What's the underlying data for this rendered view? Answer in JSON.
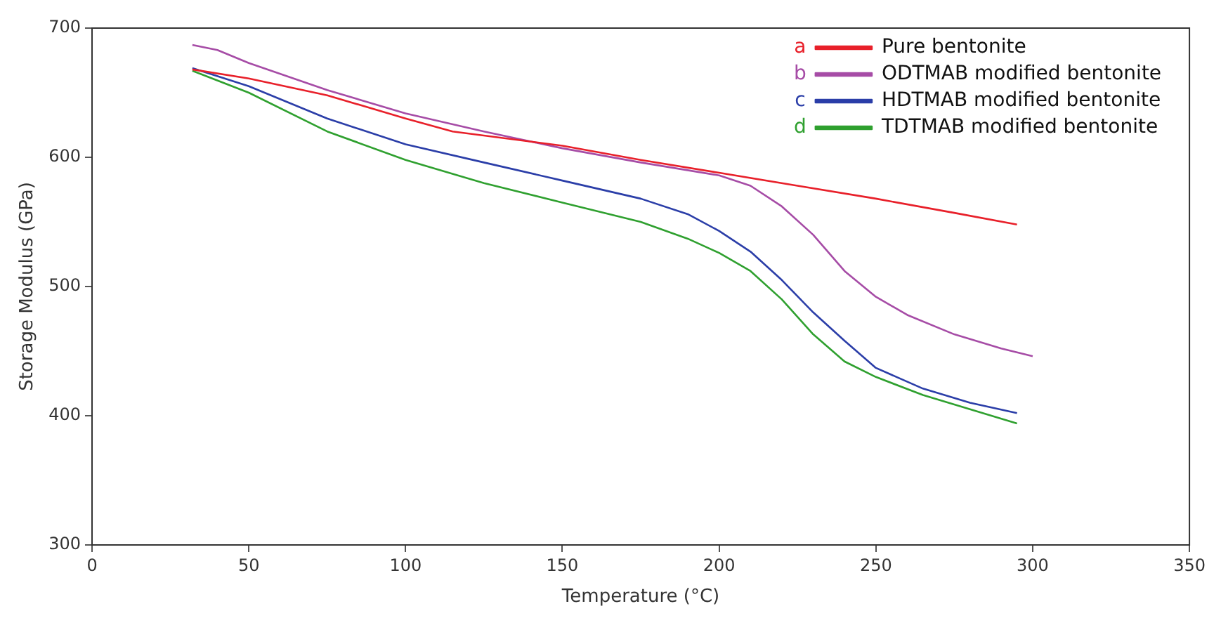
{
  "chart_data": {
    "type": "line",
    "xlabel": "Temperature (°C)",
    "ylabel": "Storage Modulus (GPa)",
    "xlim": [
      0,
      350
    ],
    "xticks": [
      0,
      50,
      100,
      150,
      200,
      250,
      300,
      350
    ],
    "ylim": [
      300,
      700
    ],
    "yticks": [
      300,
      400,
      500,
      600,
      700
    ],
    "grid": false,
    "legend": "top right",
    "marker": "none",
    "line_style": "solid",
    "annotations": [
      "a",
      "b",
      "c",
      "d"
    ],
    "series": [
      {
        "name": "Pure bentonite",
        "color": "#e8202a",
        "x": [
          32,
          50,
          75,
          100,
          115,
          150,
          175,
          200,
          225,
          250,
          275,
          295
        ],
        "values": [
          668,
          661,
          648,
          630,
          620,
          609,
          598,
          588,
          578,
          568,
          557,
          548
        ]
      },
      {
        "name": "ODTMAB modified bentonite",
        "color": "#a64ca6",
        "x": [
          32,
          40,
          50,
          75,
          100,
          125,
          150,
          175,
          200,
          210,
          220,
          230,
          240,
          250,
          260,
          275,
          290,
          300
        ],
        "values": [
          687,
          683,
          673,
          652,
          634,
          620,
          607,
          596,
          586,
          578,
          562,
          540,
          512,
          492,
          478,
          463,
          452,
          446
        ]
      },
      {
        "name": "HDTMAB modified bentonite",
        "color": "#2b3ea8",
        "x": [
          32,
          50,
          75,
          100,
          125,
          150,
          175,
          190,
          200,
          210,
          220,
          230,
          240,
          250,
          265,
          280,
          295
        ],
        "values": [
          669,
          655,
          630,
          610,
          596,
          582,
          568,
          556,
          543,
          527,
          505,
          480,
          458,
          437,
          421,
          410,
          402
        ]
      },
      {
        "name": "TDTMAB modified bentonite",
        "color": "#2fa02f",
        "x": [
          32,
          50,
          75,
          100,
          125,
          150,
          175,
          190,
          200,
          210,
          220,
          230,
          240,
          250,
          265,
          280,
          295
        ],
        "values": [
          667,
          650,
          620,
          598,
          580,
          565,
          550,
          537,
          526,
          512,
          490,
          463,
          442,
          430,
          416,
          405,
          394
        ]
      }
    ]
  }
}
